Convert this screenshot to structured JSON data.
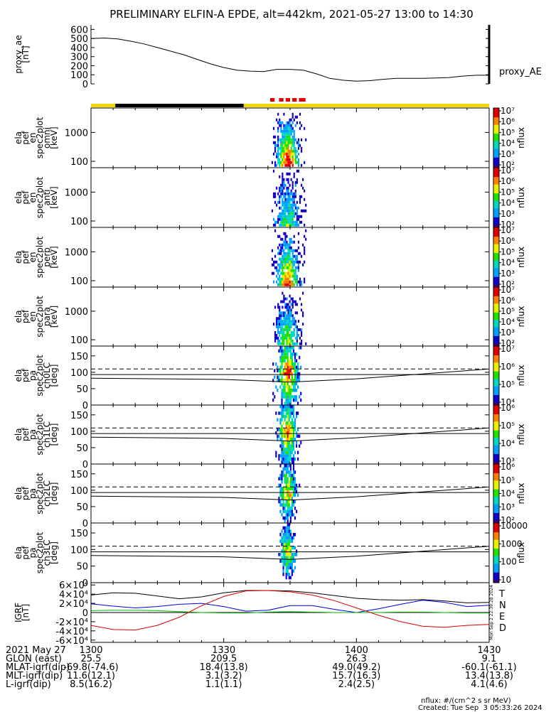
{
  "title": "PRELIMINARY ELFIN-A EPDE, alt=442km, 2021-05-27 13:00 to 14:30",
  "x_ticks": [
    "1300",
    "1330",
    "1400",
    "1430"
  ],
  "colors": {
    "flag_yellow": "#f2d600",
    "flag_black": "#000000",
    "flag_red": "#e00000",
    "bt": "#000000",
    "bn": "#0000dd",
    "be": "#00bb00",
    "bd": "#dd0000"
  },
  "chart_data": [
    {
      "type": "line",
      "panel": "proxy_ae",
      "ylabel": [
        "proxy_ae",
        "[nT]"
      ],
      "series_label": "proxy_AE",
      "ylim": [
        0,
        650
      ],
      "yticks": [
        "0",
        "100",
        "200",
        "300",
        "400",
        "500",
        "600"
      ],
      "x_minutes": [
        0,
        3,
        6,
        9,
        12,
        15,
        18,
        21,
        24,
        27,
        30,
        33,
        36,
        39,
        42,
        45,
        48,
        51,
        54,
        57,
        60,
        63,
        66,
        69,
        72,
        75,
        78,
        81,
        84,
        87,
        90
      ],
      "values": [
        500,
        505,
        495,
        470,
        440,
        400,
        360,
        320,
        270,
        220,
        180,
        150,
        140,
        135,
        160,
        160,
        150,
        110,
        60,
        40,
        30,
        35,
        50,
        60,
        60,
        60,
        65,
        70,
        85,
        95,
        95
      ]
    },
    {
      "type": "heatmap",
      "panel": "ela_pef_en_spec2plot_omni",
      "ylabel": [
        "ela",
        "pef",
        "en",
        "spec2plot",
        "omni",
        "[keV]"
      ],
      "yscale": "log",
      "ylim": [
        60,
        7000
      ],
      "yticks": [
        "100",
        "1000"
      ],
      "colorbar": {
        "label": "nflux",
        "ticks": [
          "10²",
          "10³",
          "10⁴",
          "10⁵",
          "10⁶",
          "10⁷"
        ]
      }
    },
    {
      "type": "heatmap",
      "panel": "ela_pef_en_spec2plot_anti",
      "ylabel": [
        "ela",
        "pef",
        "en",
        "spec2plot",
        "anti",
        "[keV]"
      ],
      "yscale": "log",
      "ylim": [
        60,
        7000
      ],
      "yticks": [
        "100",
        "1000"
      ],
      "colorbar": {
        "label": "nflux",
        "ticks": [
          "10²",
          "10³",
          "10⁴",
          "10⁵",
          "10⁶",
          "10⁷"
        ]
      }
    },
    {
      "type": "heatmap",
      "panel": "ela_pef_en_spec2plot_perp",
      "ylabel": [
        "ela",
        "pef",
        "en",
        "spec2plot",
        "perp",
        "[keV]"
      ],
      "yscale": "log",
      "ylim": [
        60,
        7000
      ],
      "yticks": [
        "100",
        "1000"
      ],
      "colorbar": {
        "label": "nflux",
        "ticks": [
          "10²",
          "10³",
          "10⁴",
          "10⁵",
          "10⁶",
          "10⁷"
        ]
      }
    },
    {
      "type": "heatmap",
      "panel": "ela_pef_en_spec2plot_para",
      "ylabel": [
        "ela",
        "pef",
        "en",
        "spec2plot",
        "para",
        "[keV]"
      ],
      "yscale": "log",
      "ylim": [
        60,
        7000
      ],
      "yticks": [
        "100",
        "1000"
      ],
      "colorbar": {
        "label": "nflux",
        "ticks": [
          "10²",
          "10³",
          "10⁴",
          "10⁵",
          "10⁶",
          "10⁷"
        ]
      }
    },
    {
      "type": "heatmap",
      "panel": "ela_pef_pa_spec2plot_ch0LC",
      "ylabel": [
        "ela",
        "pef",
        "pa",
        "spec2plot",
        "ch0LC",
        "[deg]"
      ],
      "ylim": [
        0,
        180
      ],
      "yticks": [
        "0",
        "50",
        "100",
        "150"
      ],
      "colorbar": {
        "label": "nflux",
        "ticks": [
          "10⁴",
          "10⁵",
          "10⁶",
          "10⁷"
        ]
      }
    },
    {
      "type": "heatmap",
      "panel": "ela_pef_pa_spec2plot_ch1LC",
      "ylabel": [
        "ela",
        "pef",
        "pa",
        "spec2plot",
        "ch1LC",
        "[deg]"
      ],
      "ylim": [
        0,
        180
      ],
      "yticks": [
        "0",
        "50",
        "100",
        "150"
      ],
      "colorbar": {
        "label": "nflux",
        "ticks": [
          "10³",
          "10⁴",
          "10⁵",
          "10⁶"
        ]
      }
    },
    {
      "type": "heatmap",
      "panel": "ela_pef_pa_spec2plot_ch2LC",
      "ylabel": [
        "ela",
        "pef",
        "pa",
        "spec2plot",
        "ch2LC",
        "[deg]"
      ],
      "ylim": [
        0,
        180
      ],
      "yticks": [
        "0",
        "50",
        "100",
        "150"
      ],
      "colorbar": {
        "label": "nflux",
        "ticks": [
          "10²",
          "10³",
          "10⁴",
          "10⁵",
          "10⁶"
        ]
      }
    },
    {
      "type": "heatmap",
      "panel": "ela_pef_pa_spec2plot_ch3LC",
      "ylabel": [
        "ela",
        "pef",
        "pa",
        "spec2plot",
        "ch3LC",
        "[deg]"
      ],
      "ylim": [
        0,
        180
      ],
      "yticks": [
        "0",
        "50",
        "100",
        "150"
      ],
      "colorbar": {
        "label": "nflux",
        "ticks": [
          "10",
          "100",
          "1000",
          "10000"
        ]
      }
    },
    {
      "type": "line",
      "panel": "igrf",
      "ylabel": [
        "IGRF",
        "[nT]"
      ],
      "ylim": [
        -65000,
        65000
      ],
      "yticks": [
        "-6×10⁴",
        "-4×10⁴",
        "-2×10⁴",
        "0",
        "2×10⁴",
        "4×10⁴",
        "6×10⁴"
      ],
      "legend": [
        "T",
        "N",
        "E",
        "D"
      ],
      "side_note": "Mon Sep  2 22:39:28 2024",
      "x_minutes": [
        0,
        5,
        10,
        15,
        20,
        25,
        30,
        35,
        40,
        45,
        50,
        55,
        60,
        65,
        70,
        75,
        80,
        85,
        90
      ],
      "series": [
        {
          "name": "T",
          "values": [
            38000,
            43000,
            42000,
            36000,
            30000,
            34000,
            43000,
            48000,
            48000,
            47000,
            43000,
            37000,
            31000,
            28000,
            27000,
            28000,
            25000,
            21000,
            22000
          ]
        },
        {
          "name": "N",
          "values": [
            19000,
            14000,
            10000,
            13000,
            18000,
            20000,
            13000,
            3000,
            5000,
            15000,
            15000,
            7000,
            0,
            8000,
            18000,
            27000,
            22000,
            13000,
            16000
          ]
        },
        {
          "name": "E",
          "values": [
            4000,
            5000,
            5000,
            4000,
            2000,
            0,
            -1000,
            -1000,
            1000,
            2000,
            1000,
            0,
            0,
            0,
            1000,
            1000,
            0,
            -1000,
            -1000
          ]
        },
        {
          "name": "D",
          "values": [
            -28000,
            -37000,
            -38000,
            -28000,
            -10000,
            15000,
            35000,
            47000,
            48000,
            45000,
            38000,
            26000,
            10000,
            -6000,
            -20000,
            -30000,
            -32000,
            -28000,
            -26000
          ]
        }
      ]
    }
  ],
  "orbit_rows": [
    {
      "label": "2021 May 27",
      "values": [
        "1300",
        "1330",
        "1400",
        "1430"
      ]
    },
    {
      "label": "GLON (east)",
      "values": [
        "25.5",
        "209.5",
        "26.3",
        "9.1"
      ]
    },
    {
      "label": "MLAT-igrf(dip)",
      "values": [
        "-69.8(-74.6)",
        "18.4(13.8)",
        "49.0(49.2)",
        "-60.1(-61.1)"
      ]
    },
    {
      "label": "MLT-igrf(dip)",
      "values": [
        "11.6(12.1)",
        "3.1(3.2)",
        "15.7(16.3)",
        "13.4(13.8)"
      ]
    },
    {
      "label": "L-igrf(dip)",
      "values": [
        "8.5(16.2)",
        "1.1(1.1)",
        "2.4(2.5)",
        "4.1(4.6)"
      ]
    }
  ],
  "footer": {
    "units": "nflux: #/(cm^2 s sr MeV)",
    "created": "Created: Tue Sep  3 05:33:26 2024"
  }
}
